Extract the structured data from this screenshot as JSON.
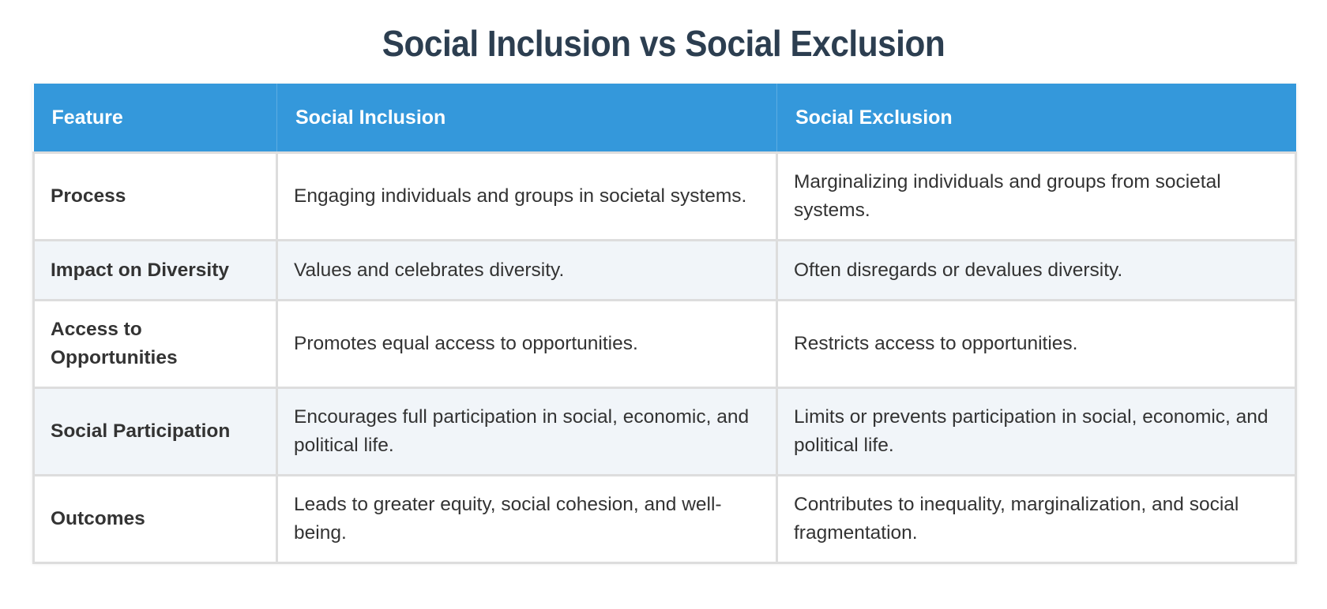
{
  "page": {
    "title": "Social Inclusion vs Social Exclusion"
  },
  "colors": {
    "title": "#2c3e50",
    "header_bg": "#3498db",
    "header_text": "#ffffff",
    "row_stripe": "#f1f5f9",
    "border": "#dddddd",
    "body_text": "#333333"
  },
  "table": {
    "headers": [
      "Feature",
      "Social Inclusion",
      "Social Exclusion"
    ],
    "rows": [
      {
        "feature": "Process",
        "inclusion": "Engaging individuals and groups in societal systems.",
        "exclusion": "Marginalizing individuals and groups from societal systems."
      },
      {
        "feature": "Impact on Diversity",
        "inclusion": "Values and celebrates diversity.",
        "exclusion": "Often disregards or devalues diversity."
      },
      {
        "feature": "Access to Opportunities",
        "inclusion": "Promotes equal access to opportunities.",
        "exclusion": "Restricts access to opportunities."
      },
      {
        "feature": "Social Participation",
        "inclusion": "Encourages full participation in social, economic, and political life.",
        "exclusion": "Limits or prevents participation in social, economic, and political life."
      },
      {
        "feature": "Outcomes",
        "inclusion": "Leads to greater equity, social cohesion, and well-being.",
        "exclusion": "Contributes to inequality, marginalization, and social fragmentation."
      }
    ]
  }
}
